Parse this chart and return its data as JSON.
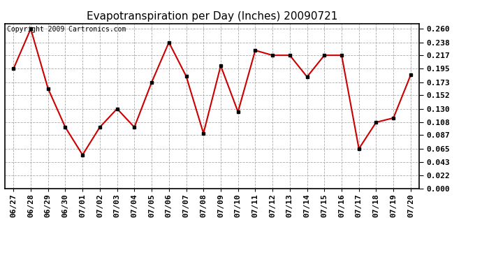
{
  "title": "Evapotranspiration per Day (Inches) 20090721",
  "copyright": "Copyright 2009 Cartronics.com",
  "dates": [
    "06/27",
    "06/28",
    "06/29",
    "06/30",
    "07/01",
    "07/02",
    "07/03",
    "07/04",
    "07/05",
    "07/06",
    "07/07",
    "07/08",
    "07/09",
    "07/10",
    "07/11",
    "07/12",
    "07/13",
    "07/14",
    "07/15",
    "07/16",
    "07/17",
    "07/18",
    "07/19",
    "07/20"
  ],
  "values": [
    0.195,
    0.26,
    0.163,
    0.1,
    0.055,
    0.1,
    0.13,
    0.1,
    0.173,
    0.238,
    0.183,
    0.09,
    0.2,
    0.125,
    0.225,
    0.217,
    0.217,
    0.182,
    0.217,
    0.217,
    0.065,
    0.108,
    0.115,
    0.185
  ],
  "line_color": "#cc0000",
  "marker_color": "#000000",
  "bg_color": "#ffffff",
  "grid_color": "#aaaaaa",
  "yticks": [
    0.0,
    0.022,
    0.043,
    0.065,
    0.087,
    0.108,
    0.13,
    0.152,
    0.173,
    0.195,
    0.217,
    0.238,
    0.26
  ],
  "ylim": [
    0.0,
    0.2686
  ],
  "title_fontsize": 11,
  "copyright_fontsize": 7,
  "tick_fontsize": 8
}
